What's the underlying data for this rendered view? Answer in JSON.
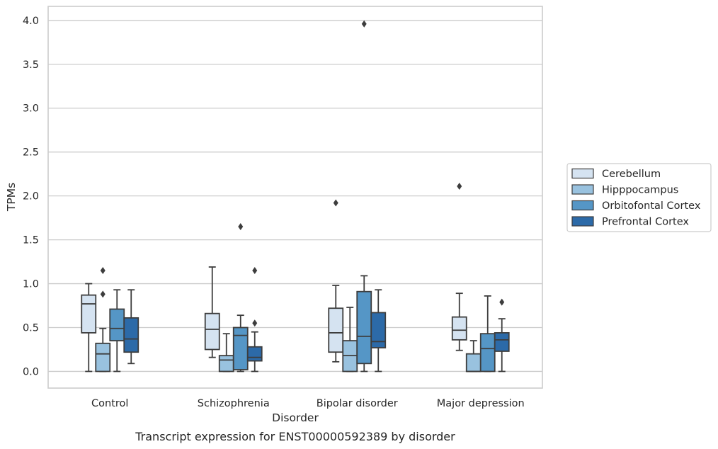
{
  "caption": "Transcript expression for ENST00000592389 by disorder",
  "chart_data": {
    "type": "box",
    "title": "",
    "xlabel": "Disorder",
    "ylabel": "TPMs",
    "ylim": [
      -0.19,
      4.16
    ],
    "yticks": [
      "0.0",
      "0.5",
      "1.0",
      "1.5",
      "2.0",
      "2.5",
      "3.0",
      "3.5",
      "4.0"
    ],
    "grid": "horizontal",
    "legend_position": "right",
    "categories": [
      "Control",
      "Schizophrenia",
      "Bipolar disorder",
      "Major depression"
    ],
    "series": [
      {
        "name": "Cerebellum",
        "color": "#d5e3f1",
        "boxes": [
          {
            "whislo": 0.0,
            "q1": 0.44,
            "med": 0.77,
            "q3": 0.87,
            "whishi": 1.0,
            "fliers": []
          },
          {
            "whislo": 0.16,
            "q1": 0.25,
            "med": 0.48,
            "q3": 0.66,
            "whishi": 1.19,
            "fliers": []
          },
          {
            "whislo": 0.11,
            "q1": 0.22,
            "med": 0.44,
            "q3": 0.72,
            "whishi": 0.98,
            "fliers": [
              1.92
            ]
          },
          {
            "whislo": 0.24,
            "q1": 0.36,
            "med": 0.47,
            "q3": 0.62,
            "whishi": 0.89,
            "fliers": [
              2.11
            ]
          }
        ]
      },
      {
        "name": "Hipppocampus",
        "color": "#99c2df",
        "boxes": [
          {
            "whislo": 0.0,
            "q1": 0.0,
            "med": 0.2,
            "q3": 0.32,
            "whishi": 0.49,
            "fliers": [
              0.88,
              1.15
            ]
          },
          {
            "whislo": 0.0,
            "q1": 0.0,
            "med": 0.13,
            "q3": 0.18,
            "whishi": 0.43,
            "fliers": []
          },
          {
            "whislo": 0.0,
            "q1": 0.0,
            "med": 0.18,
            "q3": 0.35,
            "whishi": 0.73,
            "fliers": []
          },
          {
            "whislo": 0.0,
            "q1": 0.0,
            "med": 0.0,
            "q3": 0.2,
            "whishi": 0.35,
            "fliers": []
          }
        ]
      },
      {
        "name": "Orbitofontal Cortex",
        "color": "#5596c6",
        "boxes": [
          {
            "whislo": 0.0,
            "q1": 0.35,
            "med": 0.49,
            "q3": 0.71,
            "whishi": 0.93,
            "fliers": []
          },
          {
            "whislo": 0.0,
            "q1": 0.02,
            "med": 0.41,
            "q3": 0.5,
            "whishi": 0.64,
            "fliers": [
              1.65
            ]
          },
          {
            "whislo": 0.0,
            "q1": 0.09,
            "med": 0.4,
            "q3": 0.91,
            "whishi": 1.09,
            "fliers": [
              3.96
            ]
          },
          {
            "whislo": 0.0,
            "q1": 0.0,
            "med": 0.26,
            "q3": 0.43,
            "whishi": 0.86,
            "fliers": []
          }
        ]
      },
      {
        "name": "Prefrontal Cortex",
        "color": "#2c6aa8",
        "boxes": [
          {
            "whislo": 0.09,
            "q1": 0.22,
            "med": 0.37,
            "q3": 0.61,
            "whishi": 0.93,
            "fliers": []
          },
          {
            "whislo": 0.0,
            "q1": 0.12,
            "med": 0.16,
            "q3": 0.28,
            "whishi": 0.45,
            "fliers": [
              0.55,
              1.15
            ]
          },
          {
            "whislo": 0.0,
            "q1": 0.27,
            "med": 0.34,
            "q3": 0.67,
            "whishi": 0.93,
            "fliers": []
          },
          {
            "whislo": 0.0,
            "q1": 0.23,
            "med": 0.36,
            "q3": 0.44,
            "whishi": 0.6,
            "fliers": [
              0.79
            ]
          }
        ]
      }
    ]
  }
}
